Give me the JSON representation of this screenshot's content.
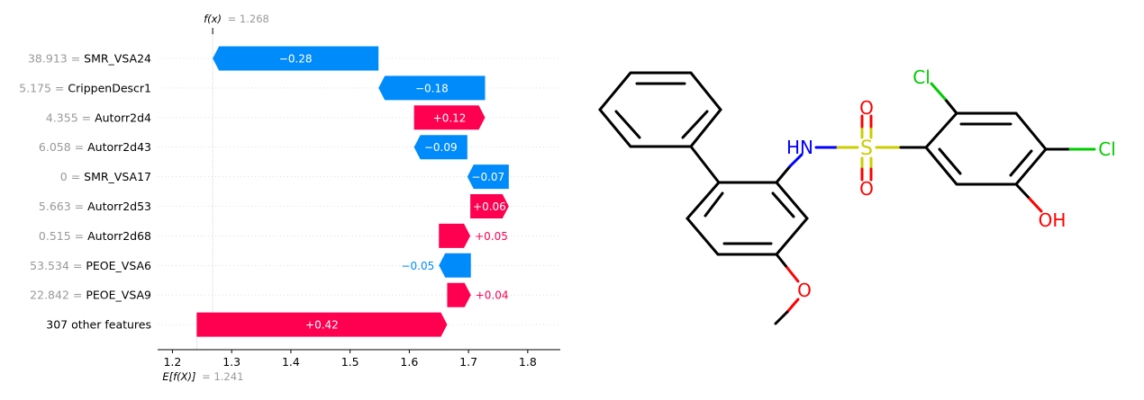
{
  "chart_data": {
    "type": "waterfall",
    "fx_label": "f(x)",
    "fx_value": "= 1.268",
    "base_label": "E[f(X)]",
    "base_value": "= 1.241",
    "expected_value": 1.241,
    "output_value": 1.268,
    "xlim": [
      1.175,
      1.855
    ],
    "ticks": [
      1.2,
      1.3,
      1.4,
      1.5,
      1.6,
      1.7,
      1.8
    ],
    "tick_labels": [
      "1.2",
      "1.3",
      "1.4",
      "1.5",
      "1.6",
      "1.7",
      "1.8"
    ],
    "rows": [
      {
        "value_text": "38.913 =",
        "feature": "SMR_VSA24",
        "start": 1.548,
        "end": 1.268,
        "contribution": -0.28,
        "label": "−0.28",
        "inside": true
      },
      {
        "value_text": "5.175 =",
        "feature": "CrippenDescr1",
        "start": 1.728,
        "end": 1.548,
        "contribution": -0.18,
        "label": "−0.18",
        "inside": true
      },
      {
        "value_text": "4.355 =",
        "feature": "Autorr2d4",
        "start": 1.608,
        "end": 1.728,
        "contribution": 0.12,
        "label": "+0.12",
        "inside": true
      },
      {
        "value_text": "6.058 =",
        "feature": "Autorr2d43",
        "start": 1.698,
        "end": 1.608,
        "contribution": -0.09,
        "label": "−0.09",
        "inside": true
      },
      {
        "value_text": "0 =",
        "feature": "SMR_VSA17",
        "start": 1.768,
        "end": 1.698,
        "contribution": -0.07,
        "label": "−0.07",
        "inside": true
      },
      {
        "value_text": "5.663 =",
        "feature": "Autorr2d53",
        "start": 1.703,
        "end": 1.768,
        "contribution": 0.06,
        "label": "+0.06",
        "inside": true
      },
      {
        "value_text": "0.515 =",
        "feature": "Autorr2d68",
        "start": 1.65,
        "end": 1.703,
        "contribution": 0.05,
        "label": "+0.05",
        "inside": false
      },
      {
        "value_text": "53.534 =",
        "feature": "PEOE_VSA6",
        "start": 1.704,
        "end": 1.65,
        "contribution": -0.05,
        "label": "−0.05",
        "inside": false
      },
      {
        "value_text": "22.842 =",
        "feature": "PEOE_VSA9",
        "start": 1.664,
        "end": 1.704,
        "contribution": 0.04,
        "label": "+0.04",
        "inside": false
      },
      {
        "value_text": "",
        "feature": "307 other features",
        "start": 1.241,
        "end": 1.664,
        "contribution": 0.42,
        "label": "+0.42",
        "inside": true
      }
    ]
  },
  "colors": {
    "positive": "#ff0051",
    "negative": "#008bfb",
    "value_gray": "#999999",
    "text": "#000000",
    "grid": "#cccccc"
  },
  "molecule": {
    "atom_labels": {
      "hn": "HN",
      "s": "S",
      "o_top": "O",
      "o_bottom": "O",
      "cl_top": "Cl",
      "cl_right": "Cl",
      "oh": "OH",
      "o_methoxy": "O"
    },
    "atom_colors": {
      "N": "#0000ff",
      "S": "#cccc00",
      "O": "#ff0000",
      "Cl": "#00cc00",
      "C": "#000000"
    }
  }
}
